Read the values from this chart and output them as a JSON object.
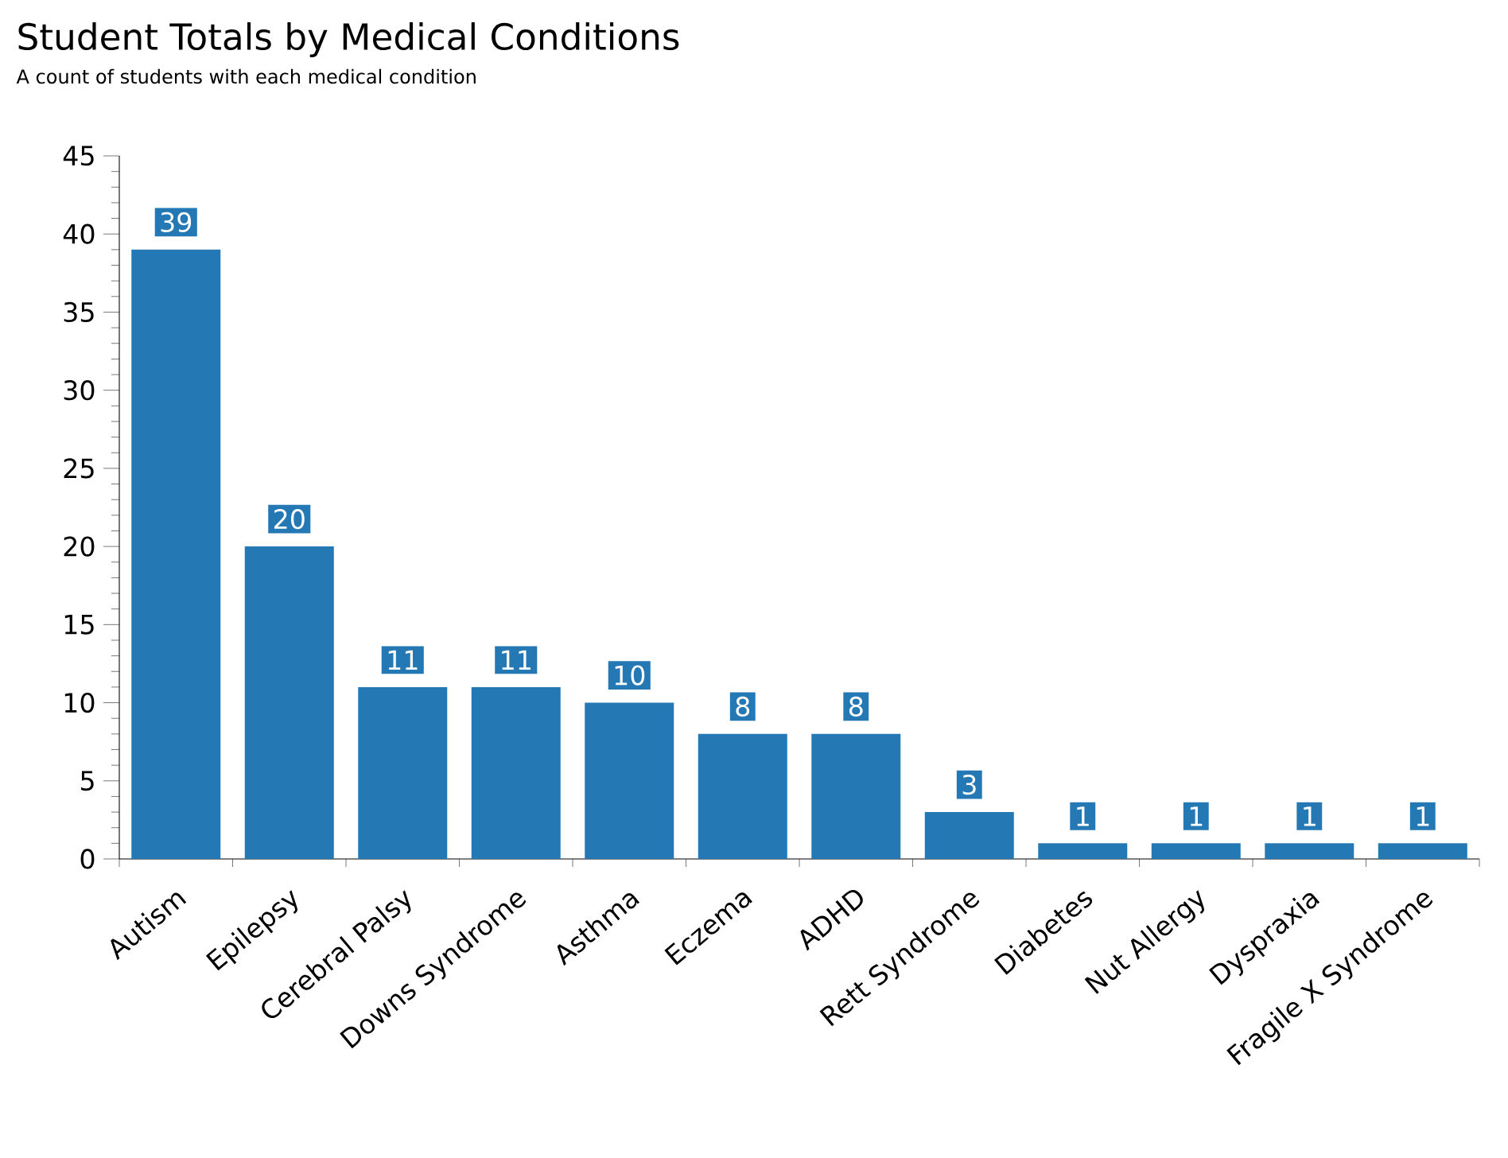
{
  "chart_data": {
    "type": "bar",
    "title": "Student Totals by Medical Conditions",
    "subtitle": "A count of students with each medical condition",
    "categories": [
      "Autism",
      "Epilepsy",
      "Cerebral Palsy",
      "Downs Syndrome",
      "Asthma",
      "Eczema",
      "ADHD",
      "Rett Syndrome",
      "Diabetes",
      "Nut Allergy",
      "Dyspraxia",
      "Fragile X Syndrome"
    ],
    "values": [
      39,
      20,
      11,
      11,
      10,
      8,
      8,
      3,
      1,
      1,
      1,
      1
    ],
    "color": "#2478b4",
    "ylim": [
      0,
      45
    ],
    "yticks": [
      0,
      5,
      10,
      15,
      20,
      25,
      30,
      35,
      40,
      45
    ],
    "data_labels": true
  }
}
